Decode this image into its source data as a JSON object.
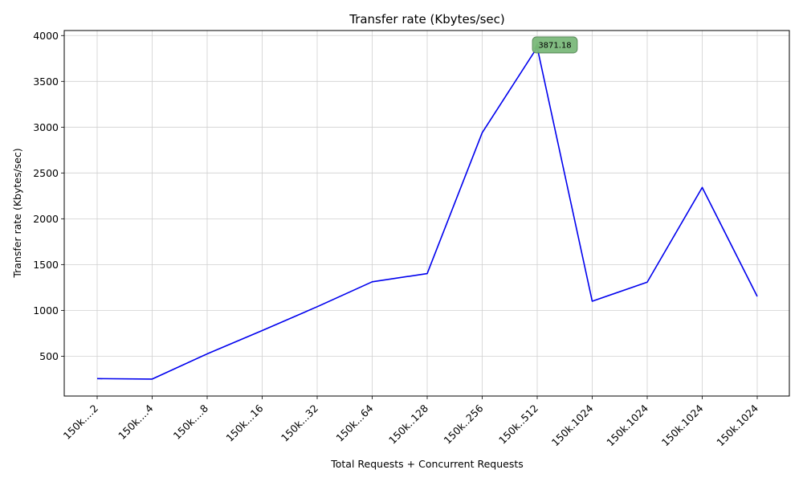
{
  "chart_data": {
    "type": "line",
    "title": "Transfer rate (Kbytes/sec)",
    "xlabel": "Total Requests + Concurrent Requests",
    "ylabel": "Transfer rate (Kbytes/sec)",
    "categories": [
      "150k....2",
      "150k....4",
      "150k....8",
      "150k...16",
      "150k...32",
      "150k...64",
      "150k..128",
      "150k..256",
      "150k..512",
      "150k.1024",
      "150k.1024",
      "150k.1024",
      "150k.1024"
    ],
    "series": [
      {
        "values": [
          255,
          250,
          525,
          780,
          1040,
          1312,
          1402,
          2940,
          3871.18,
          1100,
          1308,
          2342,
          1152
        ],
        "color": "#0000ee"
      }
    ],
    "yticks": [
      500,
      1000,
      1500,
      2000,
      2500,
      3000,
      3500,
      4000
    ],
    "ylim": [
      65,
      4055
    ],
    "grid": true,
    "annotation": {
      "index": 8,
      "label": "3871.18",
      "box_color": "#7ab87a",
      "marker_color": "#1f8a1f"
    }
  }
}
